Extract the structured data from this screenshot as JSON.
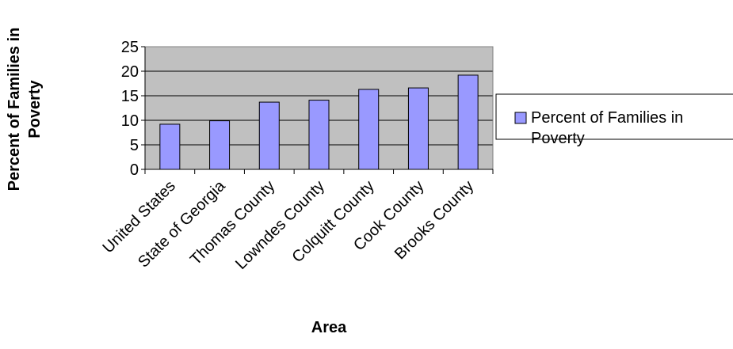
{
  "chart_data": {
    "type": "bar",
    "title": "",
    "xlabel": "Area",
    "ylabel": "Percent of Families in Poverty",
    "ylabel_lines": [
      "Percent of Families in",
      "Poverty"
    ],
    "categories": [
      "United States",
      "State of Georgia",
      "Thomas County",
      "Lowndes County",
      "Colquitt County",
      "Cook County",
      "Brooks County"
    ],
    "series": [
      {
        "name": "Percent of Families in Poverty",
        "values": [
          9.2,
          9.9,
          13.7,
          14.1,
          16.3,
          16.6,
          19.2
        ]
      }
    ],
    "ylim": [
      0,
      25
    ],
    "yticks": [
      0,
      5,
      10,
      15,
      20,
      25
    ],
    "grid": true,
    "legend": {
      "position": "right",
      "label_lines": [
        "Percent of Families in",
        "Poverty"
      ]
    },
    "colors": {
      "bar_fill": "#9999ff",
      "plot_background": "#c0c0c0",
      "gridline": "#000000",
      "axis": "#000000"
    }
  }
}
